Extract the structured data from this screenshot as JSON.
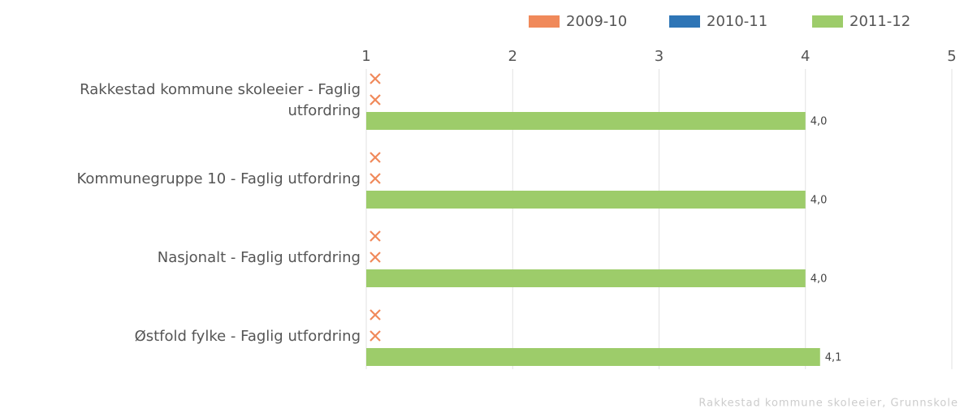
{
  "chart_data": {
    "type": "bar",
    "orientation": "horizontal",
    "categories": [
      "Rakkestad kommune skoleeier - Faglig utfordring",
      "Kommunegruppe 10 - Faglig utfordring",
      "Nasjonalt - Faglig utfordring",
      "Østfold fylke - Faglig utfordring"
    ],
    "series": [
      {
        "name": "2009-10",
        "color": "#f0895a",
        "values": [
          null,
          null,
          null,
          null
        ]
      },
      {
        "name": "2010-11",
        "color": "#2e75b6",
        "values": [
          null,
          null,
          null,
          null
        ]
      },
      {
        "name": "2011-12",
        "color": "#9dcc6a",
        "values": [
          4.0,
          4.0,
          4.0,
          4.1
        ],
        "value_labels": [
          "4,0",
          "4,0",
          "4,0",
          "4,1"
        ]
      }
    ],
    "missing_marker_color": "#f0895a",
    "xlim": [
      1,
      5
    ],
    "xticks": [
      1,
      2,
      3,
      4,
      5
    ],
    "grid": true,
    "legend": "top-right",
    "source": "Rakkestad kommune skoleeier, Grunnskole"
  }
}
